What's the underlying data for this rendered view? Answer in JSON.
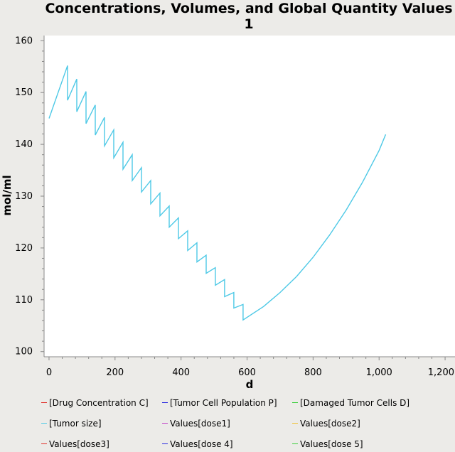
{
  "chart_data": {
    "type": "line",
    "title_line1": "Concentrations, Volumes, and Global Quantity Values",
    "title_line2": "1",
    "xlabel": "d",
    "ylabel": "mol/ml",
    "xlim": [
      -15,
      1230
    ],
    "ylim": [
      99,
      161
    ],
    "x_ticks": [
      0,
      200,
      400,
      600,
      800,
      1000,
      1200
    ],
    "x_tick_labels": [
      "0",
      "200",
      "400",
      "600",
      "800",
      "1,000",
      "1,200"
    ],
    "y_ticks": [
      100,
      110,
      120,
      130,
      140,
      150,
      160
    ],
    "y_tick_labels": [
      "100",
      "110",
      "120",
      "130",
      "140",
      "150",
      "160"
    ],
    "grid": false,
    "legend_position": "bottom",
    "series": [
      {
        "name": "[Tumor size]",
        "color": "#4ec9e6",
        "x": [
          0,
          56,
          56,
          84,
          84,
          112,
          112,
          140,
          140,
          168,
          168,
          196,
          196,
          224,
          224,
          252,
          252,
          280,
          280,
          308,
          308,
          336,
          336,
          364,
          364,
          392,
          392,
          420,
          420,
          448,
          448,
          476,
          476,
          504,
          504,
          532,
          532,
          560,
          560,
          588,
          588,
          650,
          700,
          750,
          800,
          850,
          900,
          950,
          1000,
          1020
        ],
        "values": [
          145,
          155.2,
          148.5,
          152.6,
          146.3,
          150.2,
          144.0,
          147.6,
          141.8,
          145.2,
          139.7,
          142.8,
          137.4,
          140.4,
          135.2,
          138.0,
          133.0,
          135.5,
          130.8,
          133.0,
          128.5,
          130.6,
          126.2,
          128.1,
          124.0,
          125.8,
          121.8,
          123.3,
          119.5,
          121.0,
          117.3,
          118.6,
          115.1,
          116.2,
          112.8,
          113.9,
          110.6,
          111.4,
          108.4,
          109.1,
          106.1,
          108.7,
          111.4,
          114.5,
          118.2,
          122.5,
          127.3,
          132.7,
          138.8,
          141.9
        ]
      }
    ],
    "legend": [
      {
        "label": "[Drug Concentration C]",
        "color": "#e0302a"
      },
      {
        "label": "[Tumor Cell Population P]",
        "color": "#2a2ae0"
      },
      {
        "label": "[Damaged Tumor Cells D]",
        "color": "#3ccf3c"
      },
      {
        "label": "[Tumor size]",
        "color": "#4ec9e6"
      },
      {
        "label": "Values[dose1]",
        "color": "#c040c8"
      },
      {
        "label": "Values[dose2]",
        "color": "#f0c030"
      },
      {
        "label": "Values[dose3]",
        "color": "#e0302a"
      },
      {
        "label": "Values[dose 4]",
        "color": "#2a2ae0"
      },
      {
        "label": "Values[dose 5]",
        "color": "#3ccf3c"
      }
    ]
  }
}
